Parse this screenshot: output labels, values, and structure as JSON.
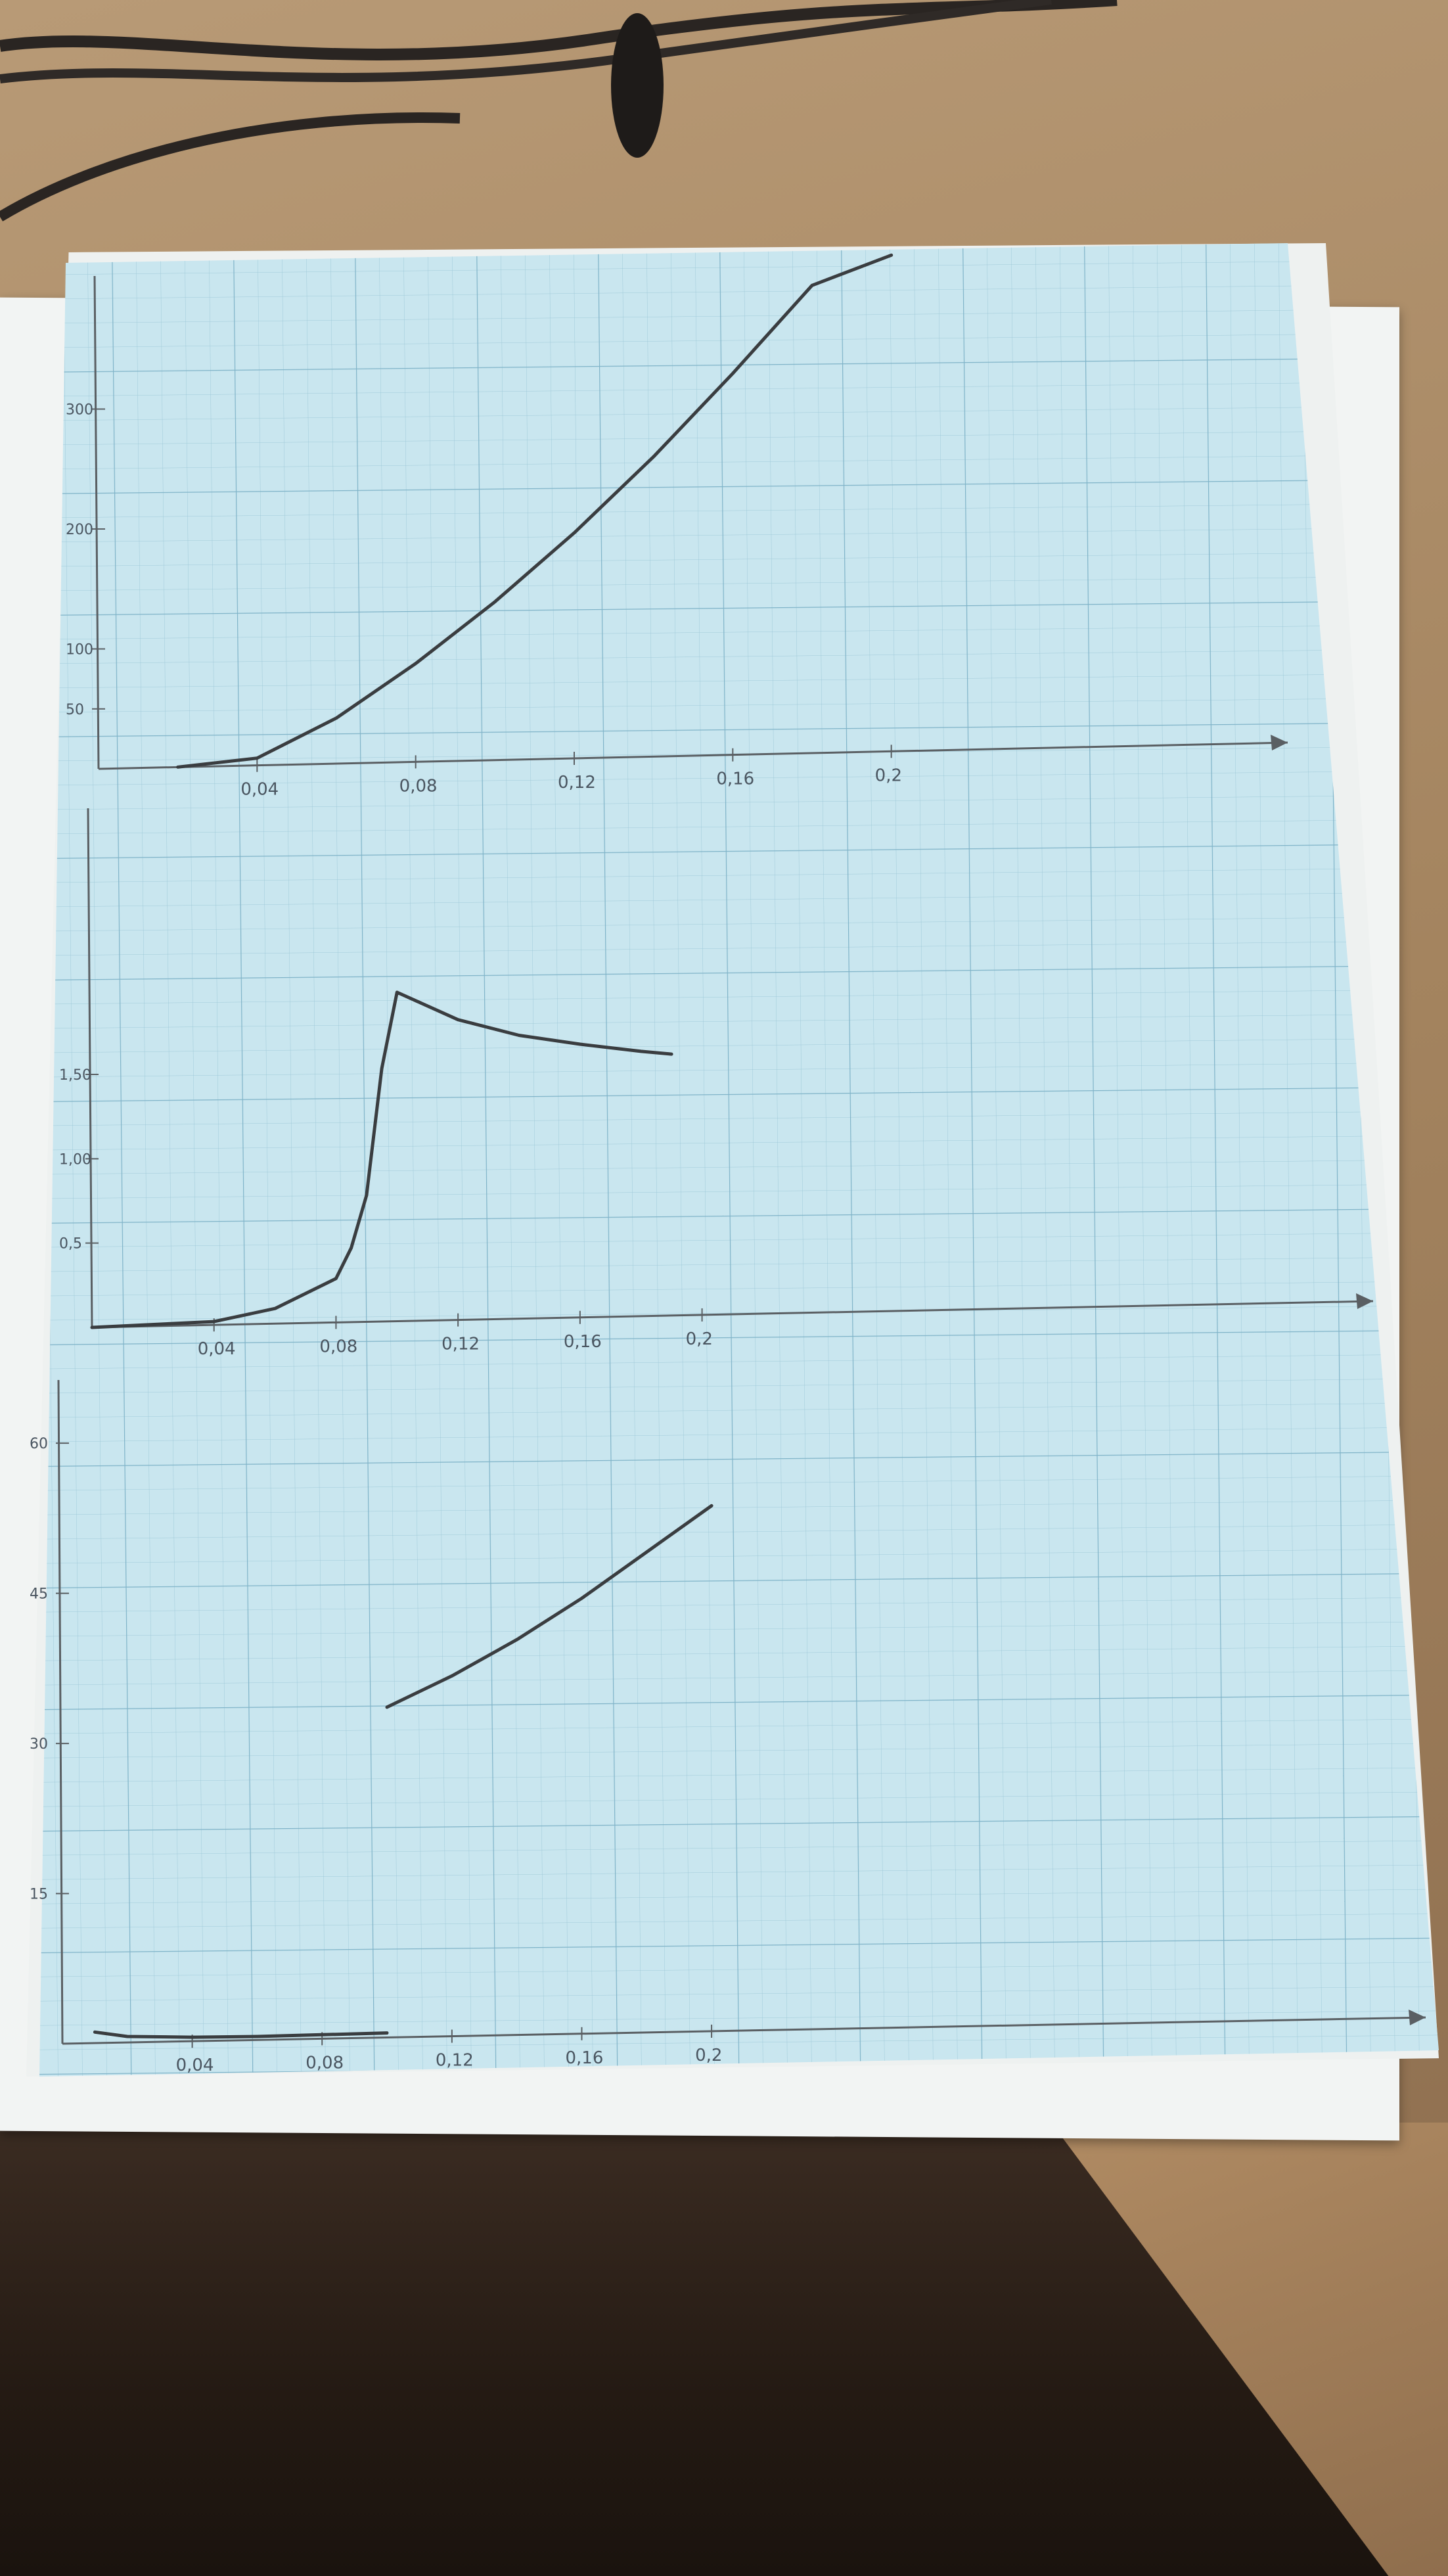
{
  "chart_data": [
    {
      "type": "line",
      "title": "",
      "ylabel": "",
      "xlabel": "",
      "xlim": [
        0,
        0.3
      ],
      "ylim": [
        0,
        400
      ],
      "x_ticks": [
        "0,04",
        "0,08",
        "0,12",
        "0,16",
        "0,2"
      ],
      "x_tick_values": [
        0.04,
        0.08,
        0.12,
        0.16,
        0.2
      ],
      "y_ticks": [
        "50",
        "100",
        "200",
        "300"
      ],
      "y_tick_values": [
        50,
        100,
        200,
        300
      ],
      "series": [
        {
          "x": [
            0.02,
            0.04,
            0.06,
            0.08,
            0.1,
            0.12,
            0.14,
            0.16,
            0.18,
            0.2
          ],
          "y": [
            0,
            6,
            38,
            82,
            132,
            188,
            250,
            318,
            390,
            470
          ]
        }
      ]
    },
    {
      "type": "line",
      "title": "",
      "ylabel": "",
      "xlabel": "",
      "xlim": [
        0,
        0.42
      ],
      "ylim": [
        0,
        3
      ],
      "x_ticks": [
        "0,04",
        "0,08",
        "0,12",
        "0,16",
        "0,2"
      ],
      "x_tick_values": [
        0.04,
        0.08,
        0.12,
        0.16,
        0.2
      ],
      "y_ticks": [
        "0,5",
        "1,00",
        "1,50"
      ],
      "y_tick_values": [
        0.5,
        1.0,
        1.5
      ],
      "series": [
        {
          "x": [
            0,
            0.04,
            0.06,
            0.08,
            0.085,
            0.09,
            0.095,
            0.1,
            0.12,
            0.14,
            0.16,
            0.18,
            0.19
          ],
          "y": [
            0,
            0.02,
            0.09,
            0.26,
            0.44,
            0.75,
            1.5,
            1.95,
            1.78,
            1.68,
            1.62,
            1.57,
            1.55
          ]
        }
      ]
    },
    {
      "type": "line",
      "title": "",
      "ylabel": "",
      "xlabel": "",
      "xlim": [
        0,
        0.42
      ],
      "ylim": [
        0,
        65
      ],
      "x_ticks": [
        "0,04",
        "0,08",
        "0,12",
        "0,16",
        "0,2"
      ],
      "x_tick_values": [
        0.04,
        0.08,
        0.12,
        0.16,
        0.2
      ],
      "y_ticks": [
        "15",
        "30",
        "45",
        "60"
      ],
      "y_tick_values": [
        15,
        30,
        45,
        60
      ],
      "series": [
        {
          "x": [
            0.01,
            0.02,
            0.04,
            0.06,
            0.08,
            0.1
          ],
          "y": [
            1.1,
            0.6,
            0.4,
            0.35,
            0.4,
            0.45
          ]
        },
        {
          "x": [
            0.1,
            0.12,
            0.14,
            0.16,
            0.18,
            0.2
          ],
          "y": [
            33,
            36,
            39.5,
            43.5,
            48,
            52.5
          ]
        }
      ]
    }
  ]
}
